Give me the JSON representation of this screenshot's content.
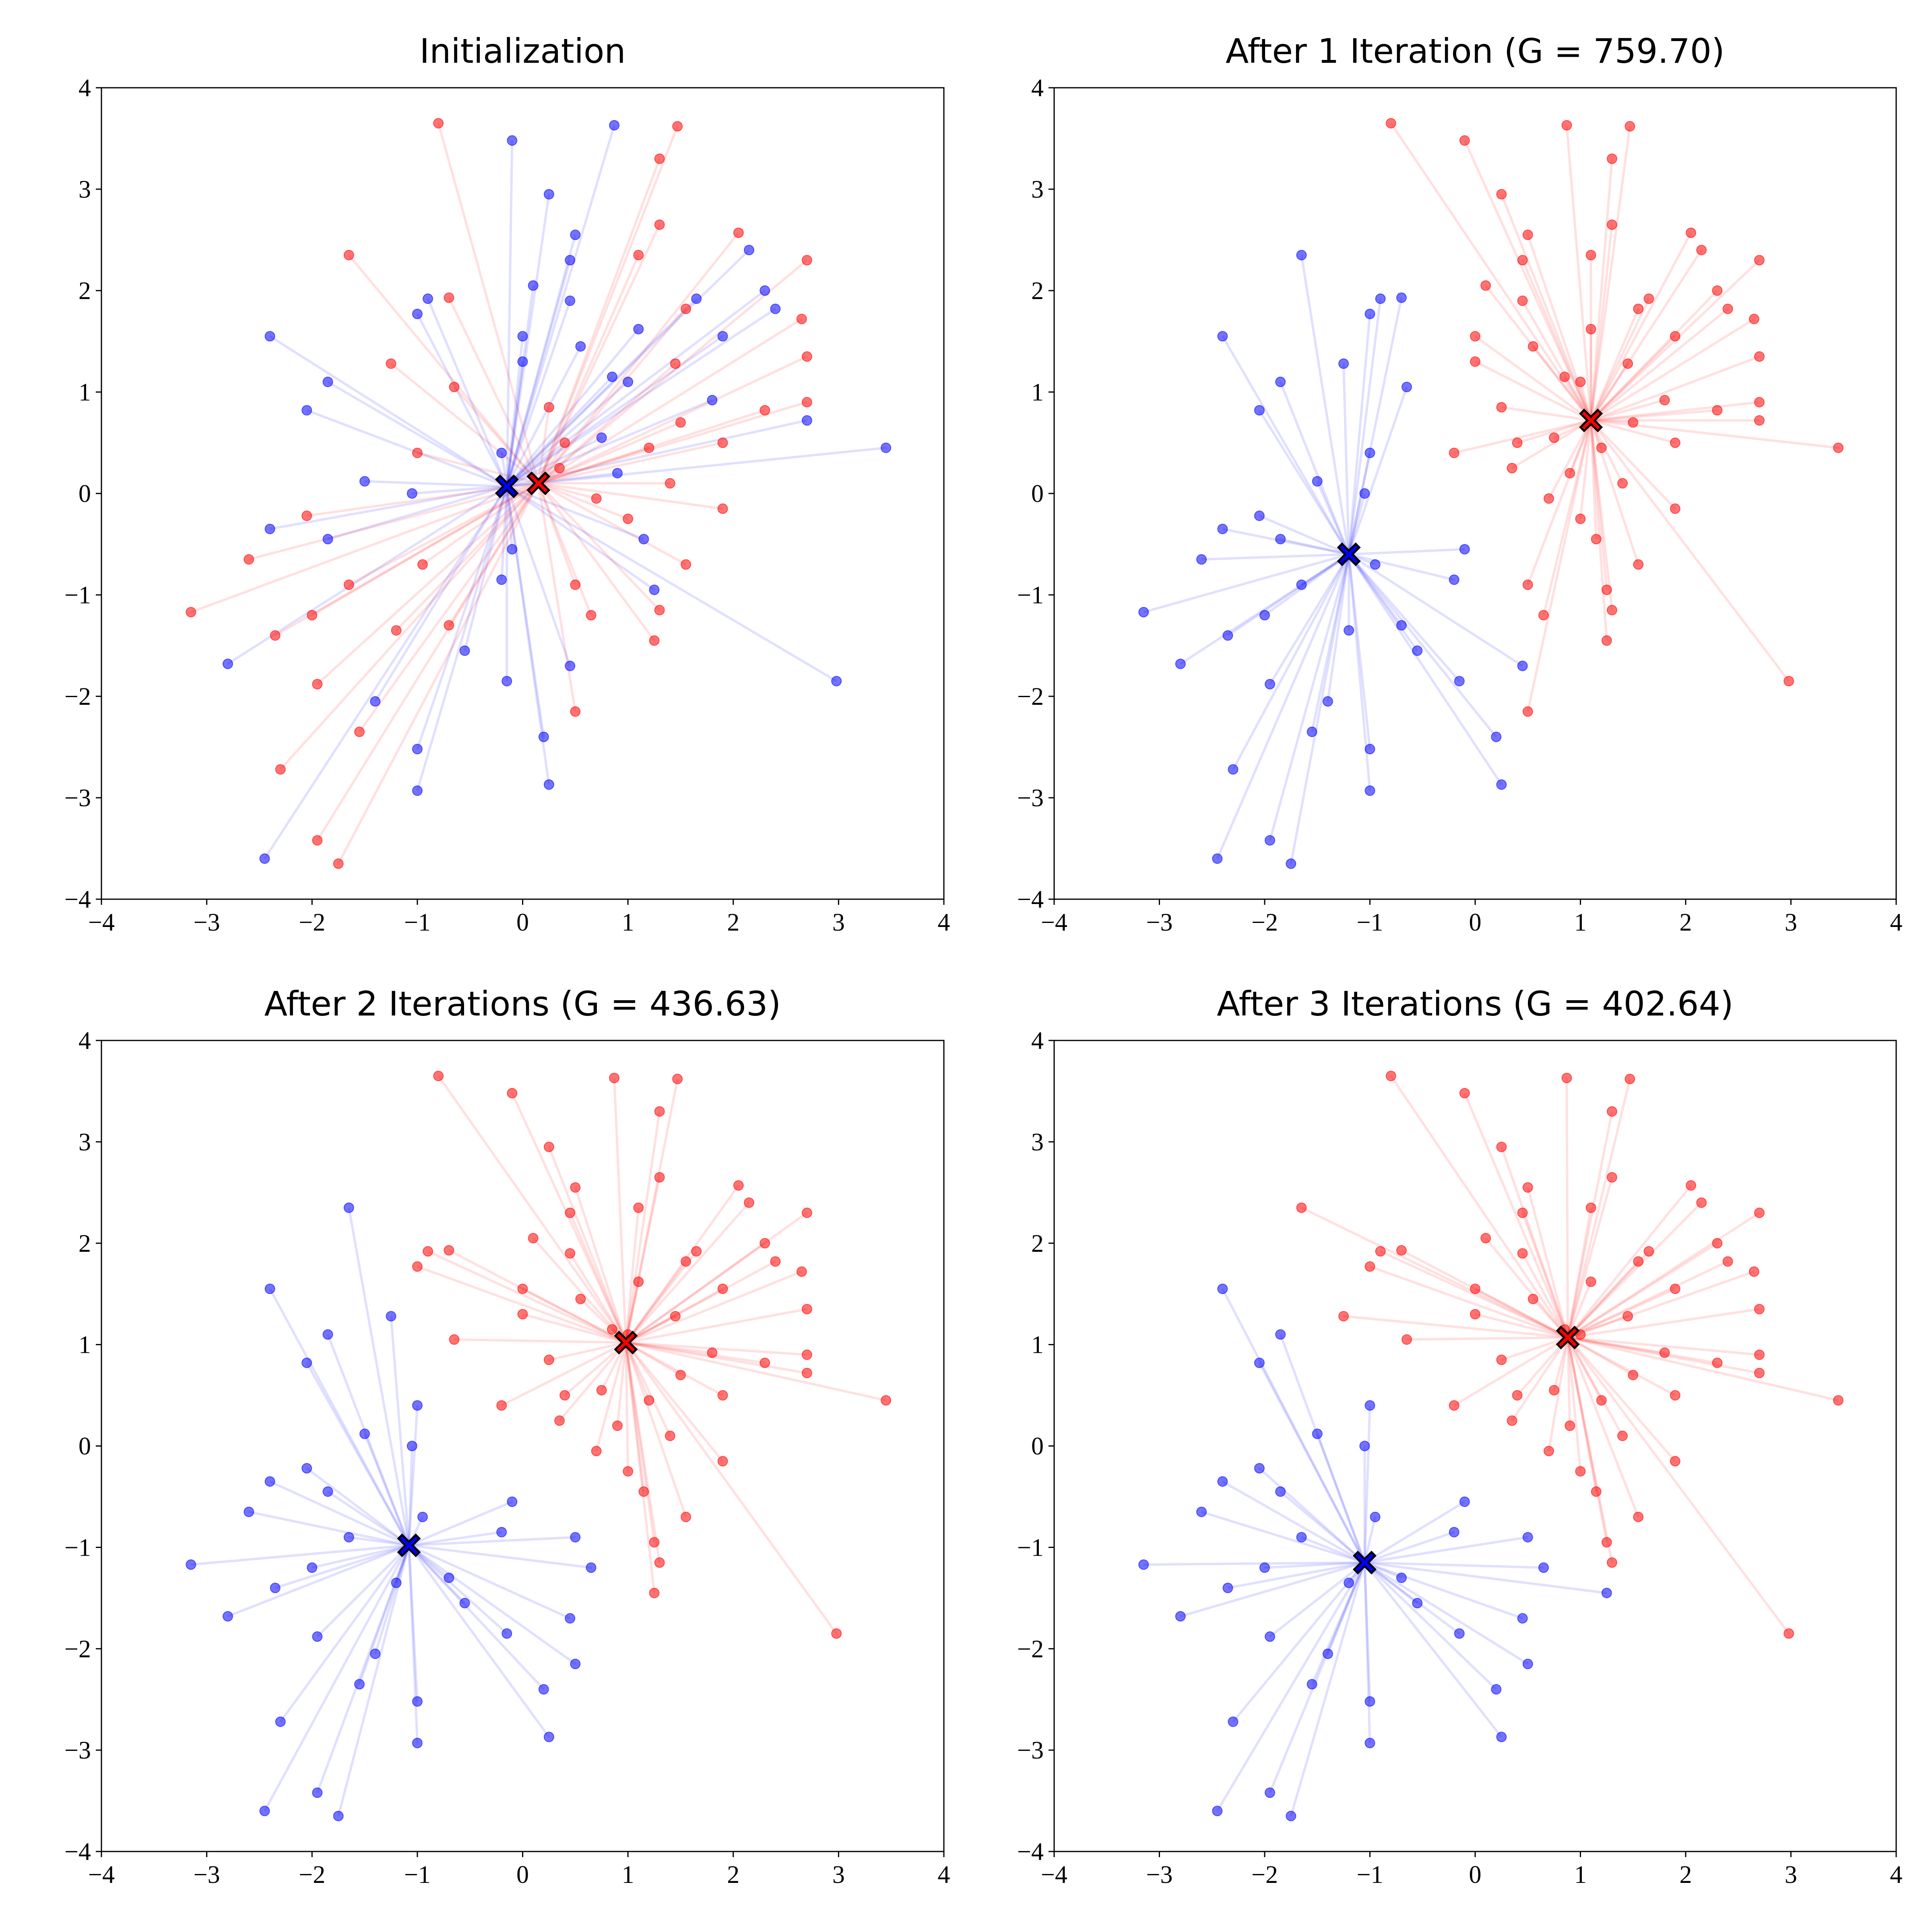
{
  "chart_data": [
    {
      "type": "scatter",
      "title": "Initialization",
      "xlim": [
        -4,
        4
      ],
      "ylim": [
        -4,
        4
      ],
      "xticks": [
        {
          "value": -4,
          "label": "−4"
        },
        {
          "value": -3,
          "label": "−3"
        },
        {
          "value": -2,
          "label": "−2"
        },
        {
          "value": -1,
          "label": "−1"
        },
        0,
        1,
        2,
        3,
        4
      ],
      "yticks": [
        {
          "value": -4,
          "label": "−4"
        },
        {
          "value": -3,
          "label": "−3"
        },
        {
          "value": -2,
          "label": "−2"
        },
        {
          "value": -1,
          "label": "−1"
        },
        0,
        1,
        2,
        3,
        4
      ],
      "series": [
        {
          "color": "#0000ff",
          "centroid": {
            "x": -0.15,
            "y": 0.07
          },
          "x": [
            0.87,
            -0.1,
            0.25,
            0.5,
            2.15,
            0.45,
            0.1,
            2.3,
            1.65,
            0.45,
            2.4,
            1.1,
            0,
            1.9,
            0.55,
            0,
            0.85,
            1,
            1.8,
            2.7,
            0.75,
            3.45,
            -0.2,
            0.9,
            1.15,
            1.25,
            2.98,
            -0.9,
            -1,
            -1.85,
            -2.4,
            -2.05,
            -1.5,
            -1.05,
            -1.85,
            -0.1,
            -2.4,
            -0.2,
            -2.8,
            -0.15,
            -1.4,
            -1,
            0.25,
            -1,
            -2.45,
            0.45,
            0.2,
            -0.55
          ],
          "values": [
            3.63,
            3.48,
            2.95,
            2.55,
            2.4,
            2.3,
            2.05,
            2,
            1.92,
            1.9,
            1.82,
            1.62,
            1.55,
            1.55,
            1.45,
            1.3,
            1.15,
            1.1,
            0.92,
            0.72,
            0.55,
            0.45,
            0.4,
            0.2,
            -0.45,
            -0.95,
            -1.85,
            1.92,
            1.77,
            1.1,
            1.55,
            0.82,
            0.12,
            0,
            -0.45,
            -0.55,
            -0.35,
            -0.85,
            -1.68,
            -1.85,
            -2.05,
            -2.52,
            -2.87,
            -2.93,
            -3.6,
            -1.7,
            -2.4,
            -1.55
          ]
        },
        {
          "color": "#ff0000",
          "centroid": {
            "x": 0.15,
            "y": 0.1
          },
          "x": [
            -0.8,
            1.47,
            1.3,
            1.3,
            2.05,
            1.1,
            2.7,
            1.55,
            2.65,
            2.7,
            1.45,
            2.3,
            2.7,
            0.25,
            1.5,
            0.4,
            1.2,
            1.9,
            0.35,
            1.4,
            0.7,
            1.9,
            1,
            1.55,
            1.3,
            0.5,
            0.65,
            1.25,
            0.5,
            -1.65,
            -0.7,
            -1.25,
            -0.65,
            -1,
            -2.05,
            -0.95,
            -2.6,
            -1.65,
            -2,
            -1.2,
            -3.15,
            -2.35,
            -0.7,
            -1.95,
            -1.55,
            -2.3,
            -1.95,
            -1.75
          ],
          "values": [
            3.65,
            3.62,
            3.3,
            2.65,
            2.57,
            2.35,
            2.3,
            1.82,
            1.72,
            1.35,
            1.28,
            0.82,
            0.9,
            0.85,
            0.7,
            0.5,
            0.45,
            0.5,
            0.25,
            0.1,
            -0.05,
            -0.15,
            -0.25,
            -0.7,
            -1.15,
            -0.9,
            -1.2,
            -1.45,
            -2.15,
            2.35,
            1.93,
            1.28,
            1.05,
            0.4,
            -0.22,
            -0.7,
            -0.65,
            -0.9,
            -1.2,
            -1.35,
            -1.17,
            -1.4,
            -1.3,
            -1.88,
            -2.35,
            -2.72,
            -3.42,
            -3.65
          ]
        }
      ]
    },
    {
      "type": "scatter",
      "title": "After 1 Iteration (G = 759.70)",
      "xlim": [
        -4,
        4
      ],
      "ylim": [
        -4,
        4
      ],
      "xticks": [
        {
          "value": -4,
          "label": "−4"
        },
        {
          "value": -3,
          "label": "−3"
        },
        {
          "value": -2,
          "label": "−2"
        },
        {
          "value": -1,
          "label": "−1"
        },
        0,
        1,
        2,
        3,
        4
      ],
      "yticks": [
        {
          "value": -4,
          "label": "−4"
        },
        {
          "value": -3,
          "label": "−3"
        },
        {
          "value": -2,
          "label": "−2"
        },
        {
          "value": -1,
          "label": "−1"
        },
        0,
        1,
        2,
        3,
        4
      ],
      "series": [
        {
          "color": "#0000ff",
          "centroid": {
            "x": -1.2,
            "y": -0.6
          },
          "x": [
            -1.65,
            -0.9,
            -1,
            -0.7,
            -1.25,
            -1.85,
            -2.4,
            -0.65,
            -2.05,
            -1,
            -1.5,
            -1.05,
            -2.05,
            -1.85,
            -0.1,
            -2.4,
            -0.95,
            -2.6,
            -1.65,
            -2,
            -0.2,
            -1.2,
            -3.15,
            -2.35,
            -0.7,
            -2.8,
            -1.95,
            -0.15,
            -1.4,
            -1.55,
            -1,
            -2.3,
            0.25,
            -1,
            -2.45,
            -1.95,
            -1.75,
            0.45,
            0.2,
            -0.55
          ],
          "values": [
            2.35,
            1.92,
            1.77,
            1.93,
            1.28,
            1.1,
            1.55,
            1.05,
            0.82,
            0.4,
            0.12,
            0,
            -0.22,
            -0.45,
            -0.55,
            -0.35,
            -0.7,
            -0.65,
            -0.9,
            -1.2,
            -0.85,
            -1.35,
            -1.17,
            -1.4,
            -1.3,
            -1.68,
            -1.88,
            -1.85,
            -2.05,
            -2.35,
            -2.52,
            -2.72,
            -2.87,
            -2.93,
            -3.6,
            -3.42,
            -3.65,
            -1.7,
            -2.4,
            -1.55
          ]
        },
        {
          "color": "#ff0000",
          "centroid": {
            "x": 1.1,
            "y": 0.72
          },
          "x": [
            -0.8,
            0.87,
            1.47,
            -0.1,
            0.25,
            1.3,
            1.3,
            0.5,
            2.05,
            2.15,
            1.1,
            0.45,
            2.7,
            0.1,
            2.3,
            1.65,
            0.45,
            1.55,
            2.4,
            2.65,
            1.1,
            0,
            1.9,
            0.55,
            2.7,
            1.45,
            0,
            0.85,
            1,
            1.8,
            2.3,
            2.7,
            0.25,
            1.5,
            2.7,
            0.75,
            3.45,
            0.4,
            1.2,
            1.9,
            -0.2,
            0.35,
            0.9,
            1.4,
            0.7,
            1.9,
            1,
            1.15,
            1.55,
            1.25,
            1.3,
            0.5,
            0.65,
            1.25,
            2.98,
            0.5
          ],
          "values": [
            3.65,
            3.63,
            3.62,
            3.48,
            2.95,
            3.3,
            2.65,
            2.55,
            2.57,
            2.4,
            2.35,
            2.3,
            2.3,
            2.05,
            2,
            1.92,
            1.9,
            1.82,
            1.82,
            1.72,
            1.62,
            1.55,
            1.55,
            1.45,
            1.35,
            1.28,
            1.3,
            1.15,
            1.1,
            0.92,
            0.82,
            0.9,
            0.85,
            0.7,
            0.72,
            0.55,
            0.45,
            0.5,
            0.45,
            0.5,
            0.4,
            0.25,
            0.2,
            0.1,
            -0.05,
            -0.15,
            -0.25,
            -0.45,
            -0.7,
            -0.95,
            -1.15,
            -0.9,
            -1.2,
            -1.45,
            -1.85,
            -2.15
          ]
        }
      ]
    },
    {
      "type": "scatter",
      "title": "After 2 Iterations (G = 436.63)",
      "xlim": [
        -4,
        4
      ],
      "ylim": [
        -4,
        4
      ],
      "xticks": [
        {
          "value": -4,
          "label": "−4"
        },
        {
          "value": -3,
          "label": "−3"
        },
        {
          "value": -2,
          "label": "−2"
        },
        {
          "value": -1,
          "label": "−1"
        },
        0,
        1,
        2,
        3,
        4
      ],
      "yticks": [
        {
          "value": -4,
          "label": "−4"
        },
        {
          "value": -3,
          "label": "−3"
        },
        {
          "value": -2,
          "label": "−2"
        },
        {
          "value": -1,
          "label": "−1"
        },
        0,
        1,
        2,
        3,
        4
      ],
      "series": [
        {
          "color": "#0000ff",
          "centroid": {
            "x": -1.08,
            "y": -0.98
          },
          "x": [
            0.5,
            0.65,
            0.5,
            -1.65,
            -1.25,
            -1.85,
            -2.4,
            -2.05,
            -1,
            -1.5,
            -1.05,
            -2.05,
            -1.85,
            -0.1,
            -2.4,
            -0.95,
            -2.6,
            -1.65,
            -2,
            -0.2,
            -1.2,
            -3.15,
            -2.35,
            -0.7,
            -2.8,
            -1.95,
            -0.15,
            -1.4,
            -1.55,
            -1,
            -2.3,
            0.25,
            -1,
            -2.45,
            -1.95,
            -1.75,
            0.45,
            0.2,
            -0.55
          ],
          "values": [
            -0.9,
            -1.2,
            -2.15,
            2.35,
            1.28,
            1.1,
            1.55,
            0.82,
            0.4,
            0.12,
            0,
            -0.22,
            -0.45,
            -0.55,
            -0.35,
            -0.7,
            -0.65,
            -0.9,
            -1.2,
            -0.85,
            -1.35,
            -1.17,
            -1.4,
            -1.3,
            -1.68,
            -1.88,
            -1.85,
            -2.05,
            -2.35,
            -2.52,
            -2.72,
            -2.87,
            -2.93,
            -3.6,
            -3.42,
            -3.65,
            -1.7,
            -2.4,
            -1.55
          ]
        },
        {
          "color": "#ff0000",
          "centroid": {
            "x": 0.98,
            "y": 1.02
          },
          "x": [
            -0.8,
            0.87,
            1.47,
            -0.1,
            0.25,
            1.3,
            1.3,
            0.5,
            2.05,
            2.15,
            1.1,
            0.45,
            2.7,
            0.1,
            2.3,
            1.65,
            0.45,
            1.55,
            2.4,
            2.65,
            1.1,
            0,
            1.9,
            0.55,
            2.7,
            1.45,
            0,
            0.85,
            1,
            1.8,
            2.3,
            2.7,
            0.25,
            1.5,
            2.7,
            0.75,
            3.45,
            0.4,
            1.2,
            1.9,
            -0.2,
            0.35,
            0.9,
            1.4,
            0.7,
            1.9,
            1,
            1.15,
            1.55,
            1.25,
            1.3,
            1.25,
            2.98,
            -0.9,
            -1,
            -0.7,
            -0.65
          ],
          "values": [
            3.65,
            3.63,
            3.62,
            3.48,
            2.95,
            3.3,
            2.65,
            2.55,
            2.57,
            2.4,
            2.35,
            2.3,
            2.3,
            2.05,
            2,
            1.92,
            1.9,
            1.82,
            1.82,
            1.72,
            1.62,
            1.55,
            1.55,
            1.45,
            1.35,
            1.28,
            1.3,
            1.15,
            1.1,
            0.92,
            0.82,
            0.9,
            0.85,
            0.7,
            0.72,
            0.55,
            0.45,
            0.5,
            0.45,
            0.5,
            0.4,
            0.25,
            0.2,
            0.1,
            -0.05,
            -0.15,
            -0.25,
            -0.45,
            -0.7,
            -0.95,
            -1.15,
            -1.45,
            -1.85,
            1.92,
            1.77,
            1.93,
            1.05
          ]
        }
      ]
    },
    {
      "type": "scatter",
      "title": "After 3 Iterations (G = 402.64)",
      "xlim": [
        -4,
        4
      ],
      "ylim": [
        -4,
        4
      ],
      "xticks": [
        {
          "value": -4,
          "label": "−4"
        },
        {
          "value": -3,
          "label": "−3"
        },
        {
          "value": -2,
          "label": "−2"
        },
        {
          "value": -1,
          "label": "−1"
        },
        0,
        1,
        2,
        3,
        4
      ],
      "yticks": [
        {
          "value": -4,
          "label": "−4"
        },
        {
          "value": -3,
          "label": "−3"
        },
        {
          "value": -2,
          "label": "−2"
        },
        {
          "value": -1,
          "label": "−1"
        },
        0,
        1,
        2,
        3,
        4
      ],
      "series": [
        {
          "color": "#0000ff",
          "centroid": {
            "x": -1.05,
            "y": -1.15
          },
          "x": [
            0.5,
            0.65,
            1.25,
            0.5,
            -1.85,
            -2.4,
            -2.05,
            -1,
            -1.5,
            -1.05,
            -2.05,
            -1.85,
            -0.1,
            -2.4,
            -0.95,
            -2.6,
            -1.65,
            -2,
            -0.2,
            -1.2,
            -3.15,
            -2.35,
            -0.7,
            -2.8,
            -1.95,
            -0.15,
            -1.4,
            -1.55,
            -1,
            -2.3,
            0.25,
            -1,
            -2.45,
            -1.95,
            -1.75,
            0.45,
            0.2,
            -0.55
          ],
          "values": [
            -0.9,
            -1.2,
            -1.45,
            -2.15,
            1.1,
            1.55,
            0.82,
            0.4,
            0.12,
            0,
            -0.22,
            -0.45,
            -0.55,
            -0.35,
            -0.7,
            -0.65,
            -0.9,
            -1.2,
            -0.85,
            -1.35,
            -1.17,
            -1.4,
            -1.3,
            -1.68,
            -1.88,
            -1.85,
            -2.05,
            -2.35,
            -2.52,
            -2.72,
            -2.87,
            -2.93,
            -3.6,
            -3.42,
            -3.65,
            -1.7,
            -2.4,
            -1.55
          ]
        },
        {
          "color": "#ff0000",
          "centroid": {
            "x": 0.88,
            "y": 1.07
          },
          "x": [
            -0.8,
            0.87,
            1.47,
            -0.1,
            0.25,
            1.3,
            1.3,
            0.5,
            2.05,
            2.15,
            1.1,
            0.45,
            2.7,
            0.1,
            2.3,
            1.65,
            0.45,
            1.55,
            2.4,
            2.65,
            1.1,
            0,
            1.9,
            0.55,
            2.7,
            1.45,
            0,
            0.85,
            1,
            1.8,
            2.3,
            2.7,
            0.25,
            1.5,
            2.7,
            0.75,
            3.45,
            0.4,
            1.2,
            1.9,
            -0.2,
            0.35,
            0.9,
            1.4,
            0.7,
            1.9,
            1,
            1.15,
            1.55,
            1.25,
            1.3,
            2.98,
            -1.65,
            -0.9,
            -1,
            -0.7,
            -1.25,
            -0.65
          ],
          "values": [
            3.65,
            3.63,
            3.62,
            3.48,
            2.95,
            3.3,
            2.65,
            2.55,
            2.57,
            2.4,
            2.35,
            2.3,
            2.3,
            2.05,
            2,
            1.92,
            1.9,
            1.82,
            1.82,
            1.72,
            1.62,
            1.55,
            1.55,
            1.45,
            1.35,
            1.28,
            1.3,
            1.15,
            1.1,
            0.92,
            0.82,
            0.9,
            0.85,
            0.7,
            0.72,
            0.55,
            0.45,
            0.5,
            0.45,
            0.5,
            0.4,
            0.25,
            0.2,
            0.1,
            -0.05,
            -0.15,
            -0.25,
            -0.45,
            -0.7,
            -0.95,
            -1.15,
            -1.85,
            2.35,
            1.92,
            1.77,
            1.93,
            1.28,
            1.05
          ]
        }
      ]
    }
  ]
}
